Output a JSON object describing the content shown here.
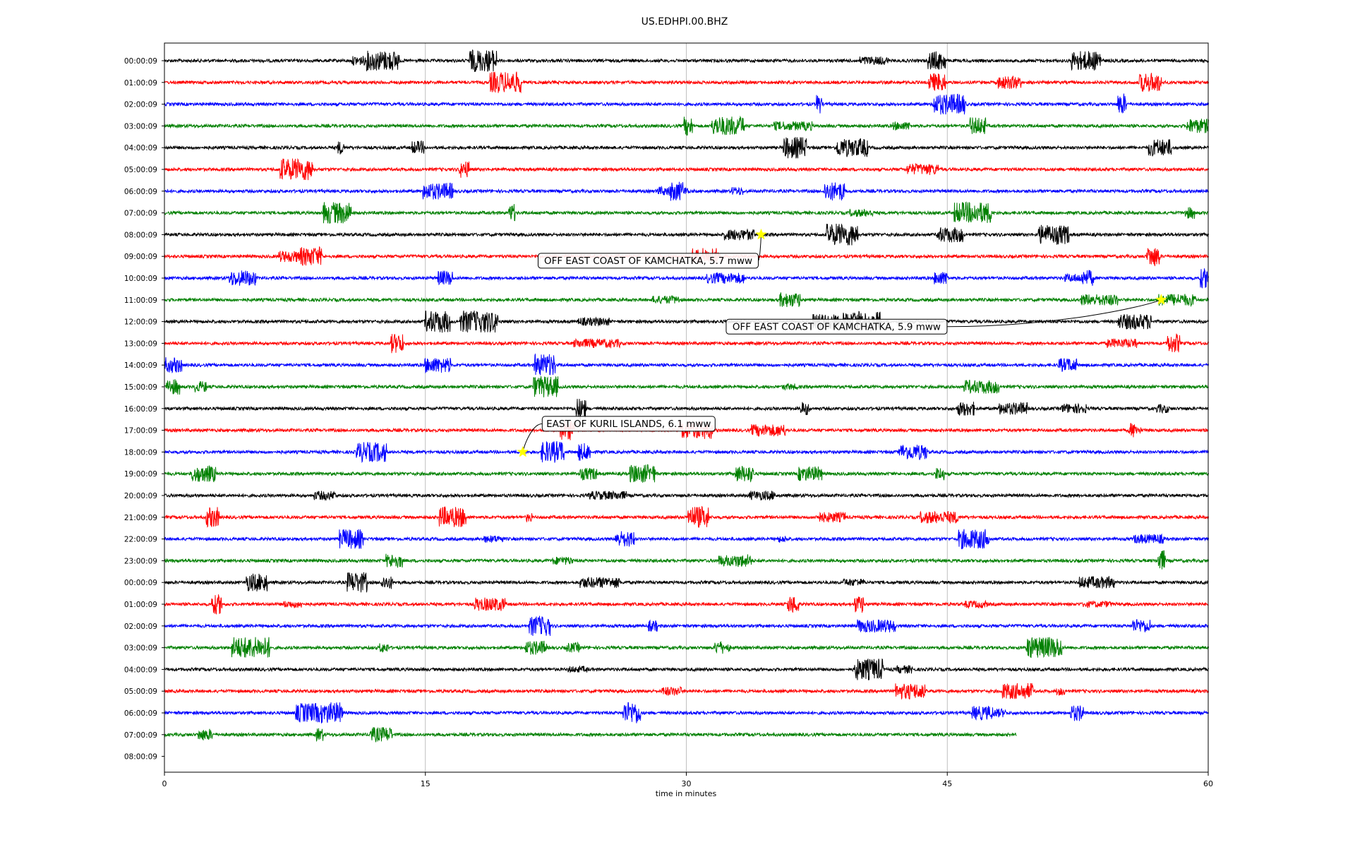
{
  "chart_data": {
    "type": "line",
    "title": "US.EDHPI.00.BHZ",
    "xlabel": "time in minutes",
    "ylabel": "",
    "xlim": [
      0,
      60
    ],
    "x_ticks": [
      0,
      15,
      30,
      45,
      60
    ],
    "vertical_grid": true,
    "series_colors": [
      "#000000",
      "#ff0000",
      "#0000ff",
      "#008000"
    ],
    "row_labels": [
      "00:00:09",
      "01:00:09",
      "02:00:09",
      "03:00:09",
      "04:00:09",
      "05:00:09",
      "06:00:09",
      "07:00:09",
      "08:00:09",
      "09:00:09",
      "10:00:09",
      "11:00:09",
      "12:00:09",
      "13:00:09",
      "14:00:09",
      "15:00:09",
      "16:00:09",
      "17:00:09",
      "18:00:09",
      "19:00:09",
      "20:00:09",
      "21:00:09",
      "22:00:09",
      "23:00:09",
      "00:00:09",
      "01:00:09",
      "02:00:09",
      "03:00:09",
      "04:00:09",
      "05:00:09",
      "06:00:09",
      "07:00:09",
      "08:00:09"
    ],
    "trace_end_minutes": [
      60,
      60,
      60,
      60,
      60,
      60,
      60,
      60,
      60,
      60,
      60,
      60,
      60,
      60,
      60,
      60,
      60,
      60,
      60,
      60,
      60,
      60,
      60,
      60,
      60,
      60,
      60,
      60,
      60,
      60,
      60,
      49,
      0
    ],
    "events": [
      {
        "row": 8,
        "minute": 34.3,
        "label": "OFF EAST COAST OF KAMCHATKA, 5.7 mww"
      },
      {
        "row": 11,
        "minute": 57.3,
        "label": "OFF EAST COAST OF KAMCHATKA, 5.9 mww"
      },
      {
        "row": 18,
        "minute": 20.6,
        "label": "EAST OF KURIL ISLANDS, 6.1 mww"
      }
    ],
    "marker_color": "#ffff00"
  }
}
